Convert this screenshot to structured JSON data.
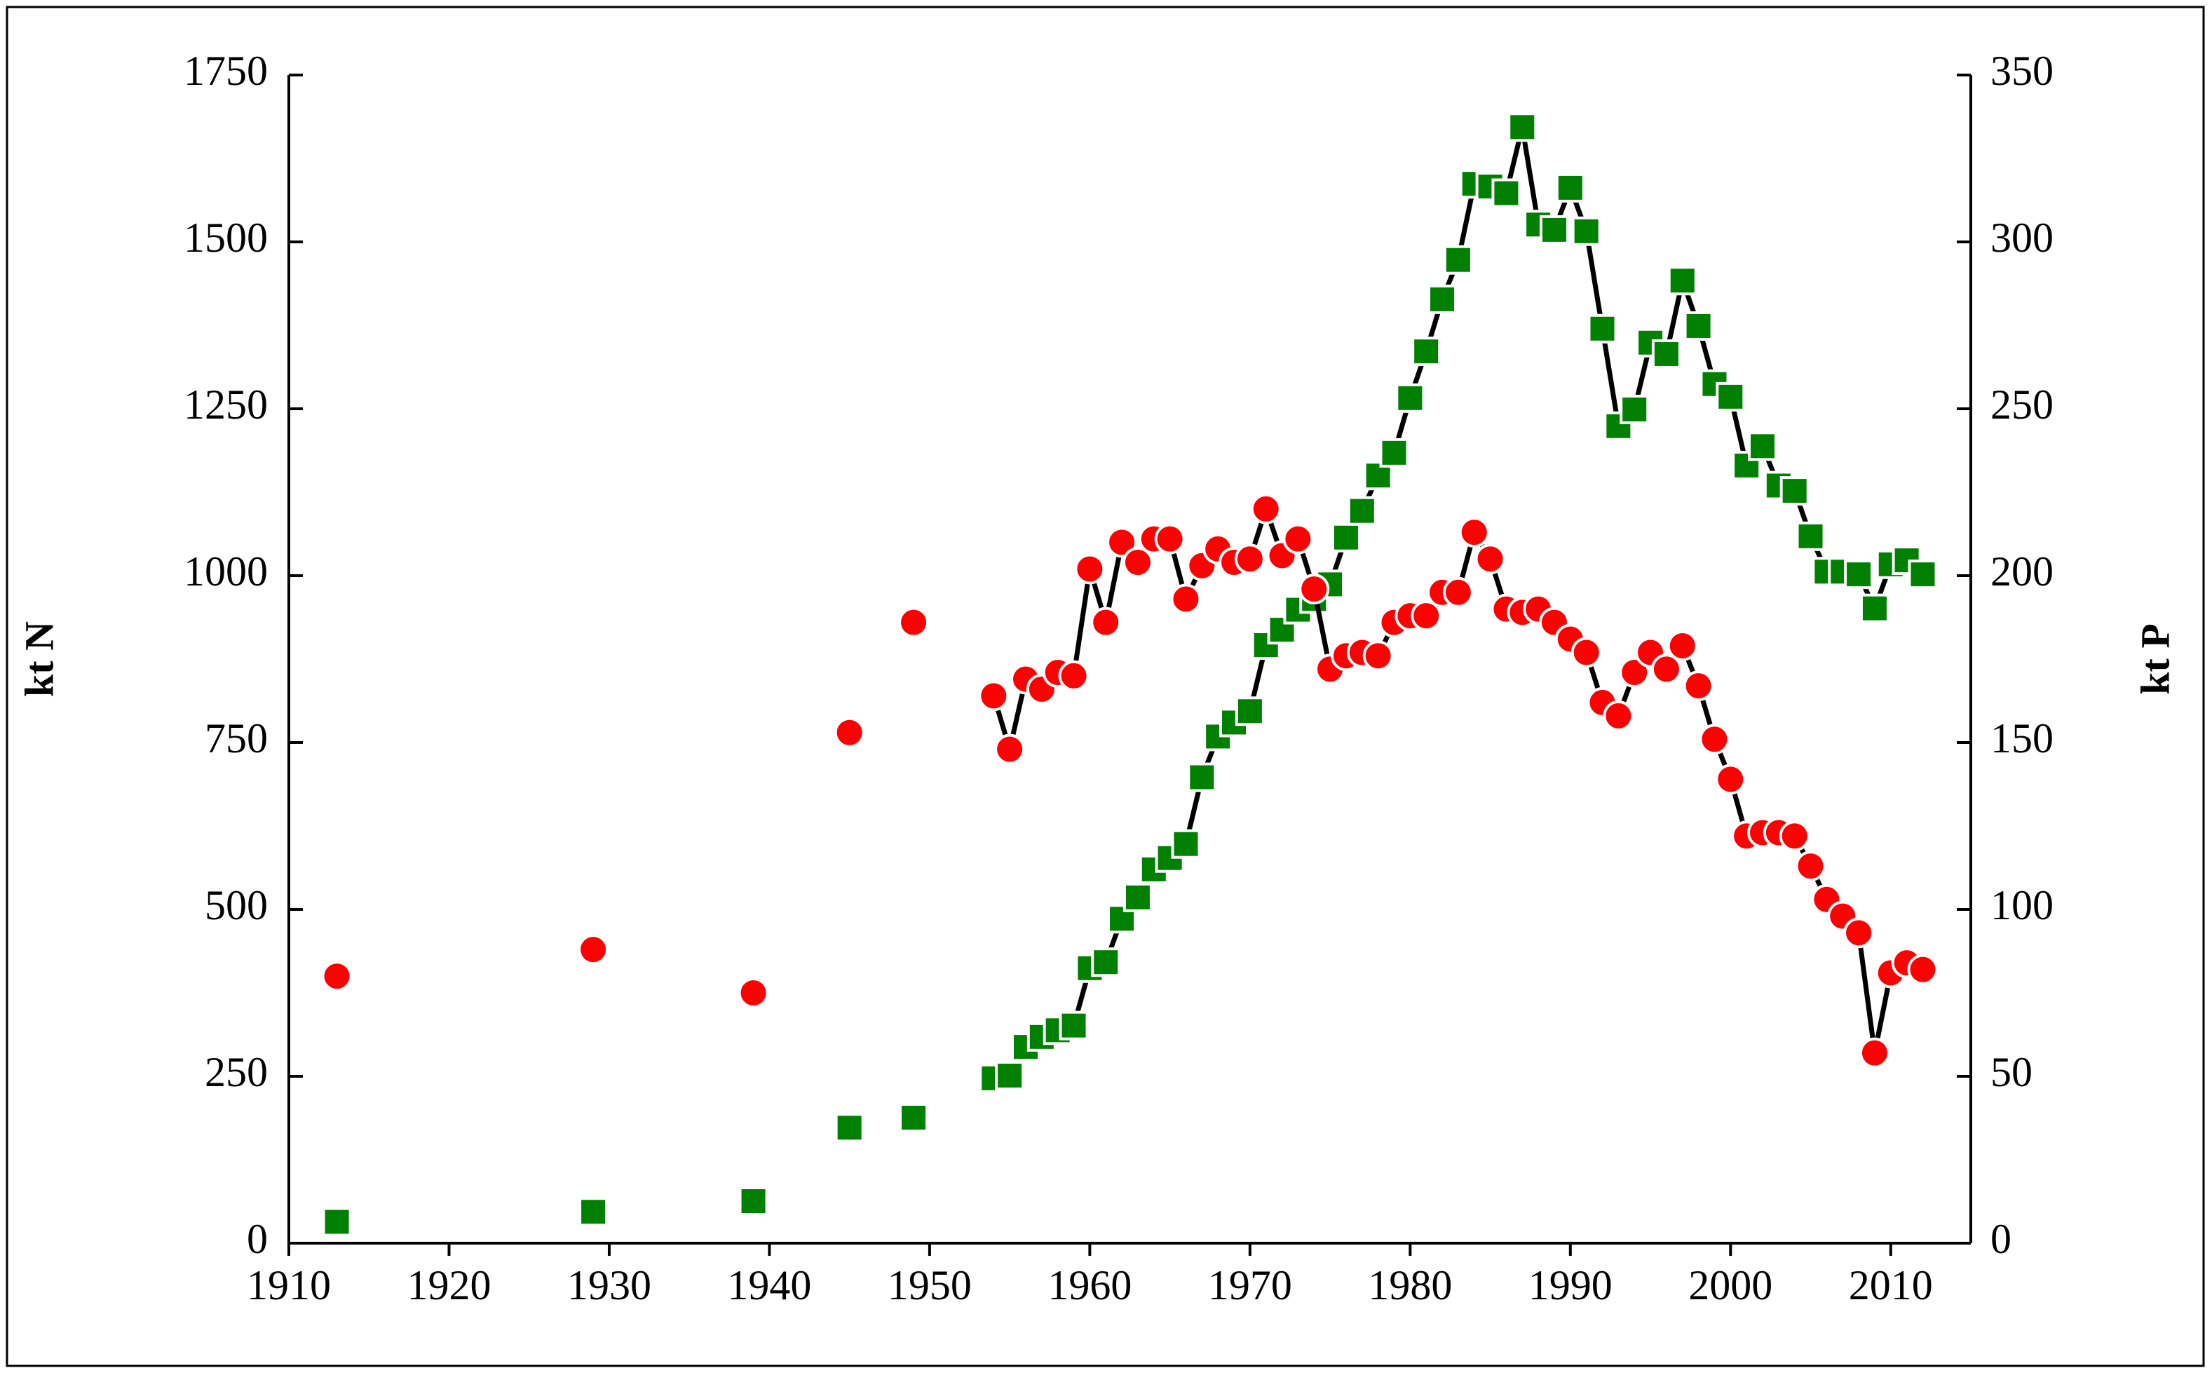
{
  "chart_data": {
    "type": "line",
    "y_label": "kt N",
    "y2_label": "kt P",
    "xlim": [
      1910,
      2015
    ],
    "xticks": [
      1910,
      1920,
      1930,
      1940,
      1950,
      1960,
      1970,
      1980,
      1990,
      2000,
      2010
    ],
    "ylim": [
      0,
      1750
    ],
    "yticks": [
      0,
      250,
      500,
      750,
      1000,
      1250,
      1500,
      1750
    ],
    "y2lim": [
      0,
      350
    ],
    "y2ticks": [
      0,
      50,
      100,
      150,
      200,
      250,
      300,
      350
    ],
    "line_color": "#000000",
    "series": [
      {
        "marker": "square",
        "color": "#008000",
        "x": [
          1913,
          1929,
          1939,
          1945,
          1949,
          1954,
          1955,
          1956,
          1957,
          1958,
          1959,
          1960,
          1961,
          1962,
          1963,
          1964,
          1965,
          1966,
          1967,
          1968,
          1969,
          1970,
          1971,
          1972,
          1973,
          1974,
          1975,
          1976,
          1977,
          1978,
          1979,
          1980,
          1981,
          1982,
          1983,
          1984,
          1985,
          1986,
          1987,
          1988,
          1989,
          1990,
          1991,
          1992,
          1993,
          1994,
          1995,
          1996,
          1997,
          1998,
          1999,
          2000,
          2001,
          2002,
          2003,
          2004,
          2005,
          2006,
          2007,
          2008,
          2009,
          2010,
          2011,
          2012
        ],
        "values": [
          32,
          47,
          63,
          173,
          188,
          247,
          251,
          294,
          309,
          319,
          326,
          412,
          421,
          486,
          518,
          560,
          577,
          598,
          698,
          759,
          780,
          797,
          896,
          919,
          949,
          965,
          987,
          1057,
          1097,
          1150,
          1184,
          1266,
          1336,
          1414,
          1473,
          1587,
          1583,
          1573,
          1672,
          1526,
          1518,
          1581,
          1516,
          1370,
          1224,
          1249,
          1349,
          1332,
          1442,
          1374,
          1287,
          1268,
          1165,
          1194,
          1135,
          1127,
          1059,
          1006,
          1006,
          1002,
          951,
          1017,
          1023,
          1002
        ]
      },
      {
        "marker": "circle",
        "color": "#ff0000",
        "axis": "y2",
        "x": [
          1913,
          1929,
          1939,
          1945,
          1949,
          1954,
          1955,
          1956,
          1957,
          1958,
          1959,
          1960,
          1961,
          1962,
          1963,
          1964,
          1965,
          1966,
          1967,
          1968,
          1969,
          1970,
          1971,
          1972,
          1973,
          1974,
          1975,
          1976,
          1977,
          1978,
          1979,
          1980,
          1981,
          1982,
          1983,
          1984,
          1985,
          1986,
          1987,
          1988,
          1989,
          1990,
          1991,
          1992,
          1993,
          1994,
          1995,
          1996,
          1997,
          1998,
          1999,
          2000,
          2001,
          2002,
          2003,
          2004,
          2005,
          2006,
          2007,
          2008,
          2009,
          2010,
          2011,
          2012
        ],
        "values": [
          80,
          88,
          75,
          153,
          186,
          164,
          148,
          169,
          166,
          171,
          170,
          202,
          186,
          210,
          204,
          211,
          211,
          193,
          203,
          208,
          204,
          205,
          220,
          206,
          211,
          196,
          172,
          176,
          177,
          176,
          186,
          188,
          188,
          195,
          195,
          213,
          205,
          190,
          189,
          190,
          186,
          181,
          177,
          162,
          158,
          171,
          177,
          172,
          179,
          167,
          151,
          139,
          122,
          123,
          123,
          122,
          113,
          103,
          98,
          93,
          57,
          81,
          84,
          82
        ]
      }
    ]
  }
}
